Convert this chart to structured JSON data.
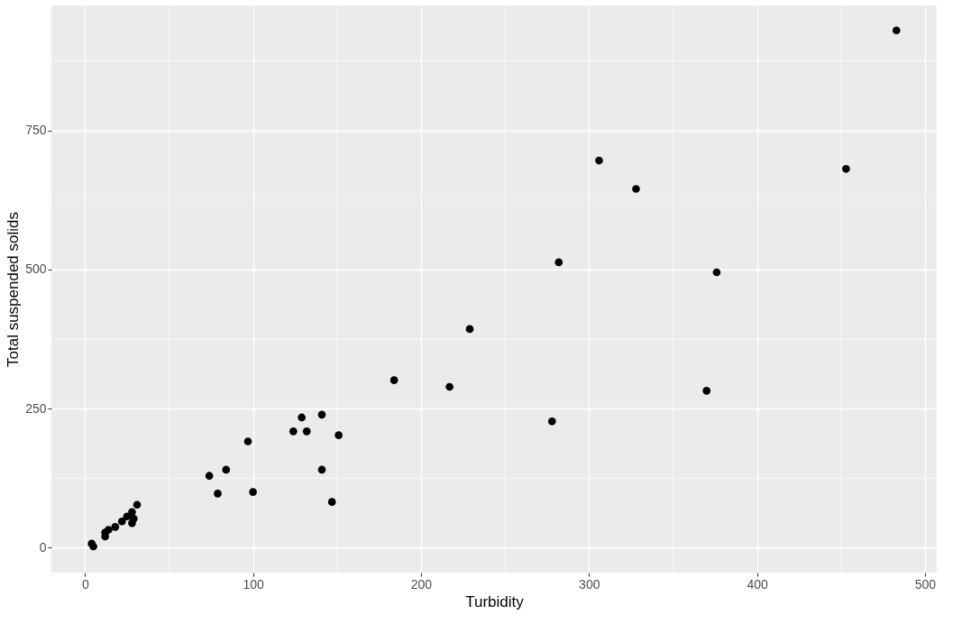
{
  "chart_data": {
    "type": "scatter",
    "xlabel": "Turbidity",
    "ylabel": "Total suspended solids",
    "x": [
      483,
      453,
      306,
      328,
      282,
      376,
      370,
      278,
      229,
      217,
      184,
      141,
      129,
      124,
      132,
      151,
      97,
      141,
      84,
      74,
      79,
      100,
      147,
      31,
      25,
      29,
      22,
      28,
      28,
      18,
      14,
      12,
      12,
      4,
      5
    ],
    "series": [
      {
        "color": "#000000",
        "values": [
          930,
          681,
          696,
          645,
          513,
          495,
          282,
          227,
          393,
          289,
          301,
          239,
          234,
          209,
          209,
          202,
          191,
          140,
          140,
          129,
          97,
          100,
          82,
          77,
          56,
          52,
          47,
          64,
          44,
          37,
          32,
          20,
          27,
          7,
          2
        ]
      }
    ],
    "xlim": [
      -20,
      507
    ],
    "ylim": [
      -45,
      975
    ],
    "xticks": [
      0,
      {
        "value": 50,
        "label": null
      },
      100,
      {
        "value": 150,
        "label": null
      },
      200,
      {
        "value": 250,
        "label": null
      },
      300,
      {
        "value": 350,
        "label": null
      },
      400,
      {
        "value": 450,
        "label": null
      },
      500
    ],
    "yticks": [
      0,
      {
        "value": 125,
        "label": null
      },
      250,
      {
        "value": 375,
        "label": null
      },
      500,
      {
        "value": 625,
        "label": null
      },
      750,
      {
        "value": 875,
        "label": null
      }
    ],
    "grid": true,
    "marker": "circle"
  }
}
